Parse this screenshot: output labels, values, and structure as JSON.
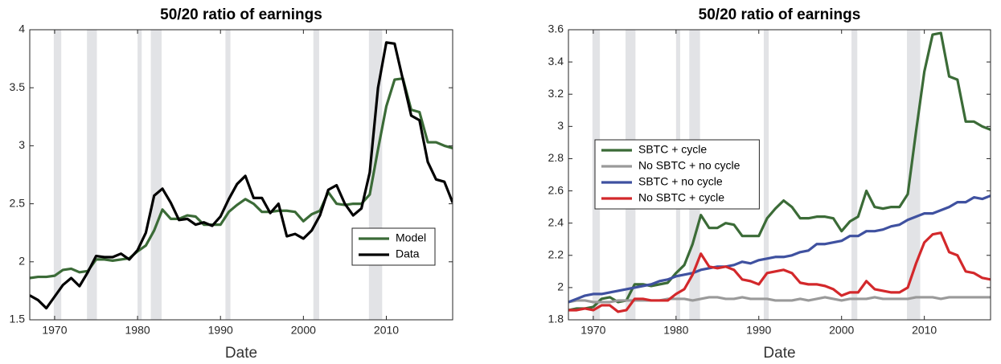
{
  "chart_data": [
    {
      "type": "line",
      "title": "50/20 ratio of earnings",
      "x_label": "Date",
      "x": [
        1967,
        1968,
        1969,
        1970,
        1971,
        1972,
        1973,
        1974,
        1975,
        1976,
        1977,
        1978,
        1979,
        1980,
        1981,
        1982,
        1983,
        1984,
        1985,
        1986,
        1987,
        1988,
        1989,
        1990,
        1991,
        1992,
        1993,
        1994,
        1995,
        1996,
        1997,
        1998,
        1999,
        2000,
        2001,
        2002,
        2003,
        2004,
        2005,
        2006,
        2007,
        2008,
        2009,
        2010,
        2011,
        2012,
        2013,
        2014,
        2015,
        2016,
        2017,
        2018
      ],
      "series": [
        {
          "name": "Model",
          "color": "#3b6b37",
          "values": [
            1.86,
            1.87,
            1.87,
            1.88,
            1.93,
            1.94,
            1.91,
            1.92,
            2.02,
            2.02,
            2.01,
            2.02,
            2.03,
            2.09,
            2.14,
            2.27,
            2.45,
            2.37,
            2.37,
            2.4,
            2.39,
            2.32,
            2.32,
            2.32,
            2.43,
            2.49,
            2.54,
            2.5,
            2.43,
            2.43,
            2.44,
            2.44,
            2.43,
            2.35,
            2.41,
            2.44,
            2.6,
            2.5,
            2.49,
            2.5,
            2.5,
            2.58,
            2.97,
            3.34,
            3.57,
            3.58,
            3.31,
            3.29,
            3.03,
            3.03,
            3.0,
            2.98
          ]
        },
        {
          "name": "Data",
          "color": "#000000",
          "values": [
            1.71,
            1.67,
            1.6,
            1.7,
            1.8,
            1.86,
            1.79,
            1.91,
            2.05,
            2.04,
            2.04,
            2.07,
            2.02,
            2.1,
            2.25,
            2.57,
            2.63,
            2.51,
            2.36,
            2.37,
            2.32,
            2.34,
            2.31,
            2.39,
            2.54,
            2.67,
            2.74,
            2.55,
            2.55,
            2.42,
            2.5,
            2.22,
            2.24,
            2.2,
            2.27,
            2.4,
            2.62,
            2.66,
            2.5,
            2.4,
            2.46,
            2.77,
            3.5,
            3.89,
            3.88,
            3.57,
            3.26,
            3.22,
            2.86,
            2.71,
            2.69,
            2.51
          ]
        }
      ],
      "recessions": [
        [
          1969.9,
          1970.8
        ],
        [
          1973.9,
          1975.1
        ],
        [
          1980,
          1980.5
        ],
        [
          1981.6,
          1982.9
        ],
        [
          1990.6,
          1991.2
        ],
        [
          2001.2,
          2001.9
        ],
        [
          2007.9,
          2009.5
        ]
      ],
      "xlim": [
        1967,
        2018
      ],
      "xticks": [
        1970,
        1980,
        1990,
        2000,
        2010
      ],
      "ylim": [
        1.5,
        4
      ],
      "yticks": [
        1.5,
        2,
        2.5,
        3,
        3.5,
        4
      ],
      "legend": "lower right"
    },
    {
      "type": "line",
      "title": "50/20 ratio of earnings",
      "x_label": "Date",
      "x": [
        1967,
        1968,
        1969,
        1970,
        1971,
        1972,
        1973,
        1974,
        1975,
        1976,
        1977,
        1978,
        1979,
        1980,
        1981,
        1982,
        1983,
        1984,
        1985,
        1986,
        1987,
        1988,
        1989,
        1990,
        1991,
        1992,
        1993,
        1994,
        1995,
        1996,
        1997,
        1998,
        1999,
        2000,
        2001,
        2002,
        2003,
        2004,
        2005,
        2006,
        2007,
        2008,
        2009,
        2010,
        2011,
        2012,
        2013,
        2014,
        2015,
        2016,
        2017,
        2018
      ],
      "series": [
        {
          "name": "SBTC + cycle",
          "color": "#3b6b37",
          "values": [
            1.86,
            1.87,
            1.87,
            1.88,
            1.93,
            1.94,
            1.91,
            1.92,
            2.02,
            2.02,
            2.01,
            2.02,
            2.03,
            2.09,
            2.14,
            2.27,
            2.45,
            2.37,
            2.37,
            2.4,
            2.39,
            2.32,
            2.32,
            2.32,
            2.43,
            2.49,
            2.54,
            2.5,
            2.43,
            2.43,
            2.44,
            2.44,
            2.43,
            2.35,
            2.41,
            2.44,
            2.6,
            2.5,
            2.49,
            2.5,
            2.5,
            2.58,
            2.97,
            3.34,
            3.57,
            3.58,
            3.31,
            3.29,
            3.03,
            3.03,
            3.0,
            2.98
          ]
        },
        {
          "name": "No SBTC + no cycle",
          "color": "#9a9a9a",
          "values": [
            1.91,
            1.92,
            1.92,
            1.91,
            1.91,
            1.91,
            1.92,
            1.92,
            1.92,
            1.92,
            1.92,
            1.92,
            1.93,
            1.93,
            1.93,
            1.92,
            1.93,
            1.94,
            1.94,
            1.93,
            1.93,
            1.94,
            1.93,
            1.93,
            1.93,
            1.92,
            1.92,
            1.92,
            1.93,
            1.92,
            1.93,
            1.94,
            1.93,
            1.92,
            1.93,
            1.93,
            1.93,
            1.94,
            1.93,
            1.93,
            1.93,
            1.93,
            1.94,
            1.94,
            1.94,
            1.93,
            1.94,
            1.94,
            1.94,
            1.94,
            1.94,
            1.94
          ]
        },
        {
          "name": "SBTC + no cycle",
          "color": "#3f51a0",
          "values": [
            1.91,
            1.93,
            1.95,
            1.96,
            1.96,
            1.97,
            1.98,
            1.99,
            2.0,
            2.01,
            2.02,
            2.04,
            2.05,
            2.07,
            2.08,
            2.09,
            2.11,
            2.12,
            2.13,
            2.13,
            2.14,
            2.16,
            2.15,
            2.17,
            2.18,
            2.19,
            2.19,
            2.2,
            2.22,
            2.23,
            2.27,
            2.27,
            2.28,
            2.29,
            2.32,
            2.32,
            2.35,
            2.35,
            2.36,
            2.38,
            2.39,
            2.42,
            2.44,
            2.46,
            2.46,
            2.48,
            2.5,
            2.53,
            2.53,
            2.56,
            2.55,
            2.57
          ]
        },
        {
          "name": "No SBTC + cycle",
          "color": "#d3282b",
          "values": [
            1.86,
            1.86,
            1.87,
            1.86,
            1.89,
            1.89,
            1.85,
            1.86,
            1.93,
            1.93,
            1.92,
            1.92,
            1.92,
            1.96,
            1.99,
            2.08,
            2.21,
            2.13,
            2.12,
            2.13,
            2.11,
            2.05,
            2.04,
            2.02,
            2.09,
            2.1,
            2.11,
            2.09,
            2.03,
            2.02,
            2.02,
            2.01,
            1.99,
            1.95,
            1.97,
            1.97,
            2.04,
            1.99,
            1.98,
            1.97,
            1.97,
            2.0,
            2.15,
            2.28,
            2.33,
            2.34,
            2.22,
            2.2,
            2.1,
            2.09,
            2.06,
            2.05
          ]
        }
      ],
      "recessions": [
        [
          1969.9,
          1970.8
        ],
        [
          1973.9,
          1975.1
        ],
        [
          1980,
          1980.5
        ],
        [
          1981.6,
          1982.9
        ],
        [
          1990.6,
          1991.2
        ],
        [
          2001.2,
          2001.9
        ],
        [
          2007.9,
          2009.5
        ]
      ],
      "xlim": [
        1967,
        2018
      ],
      "xticks": [
        1970,
        1980,
        1990,
        2000,
        2010
      ],
      "ylim": [
        1.8,
        3.6
      ],
      "yticks": [
        1.8,
        2,
        2.2,
        2.4,
        2.6,
        2.8,
        3,
        3.2,
        3.4,
        3.6
      ],
      "legend": "center left"
    }
  ]
}
